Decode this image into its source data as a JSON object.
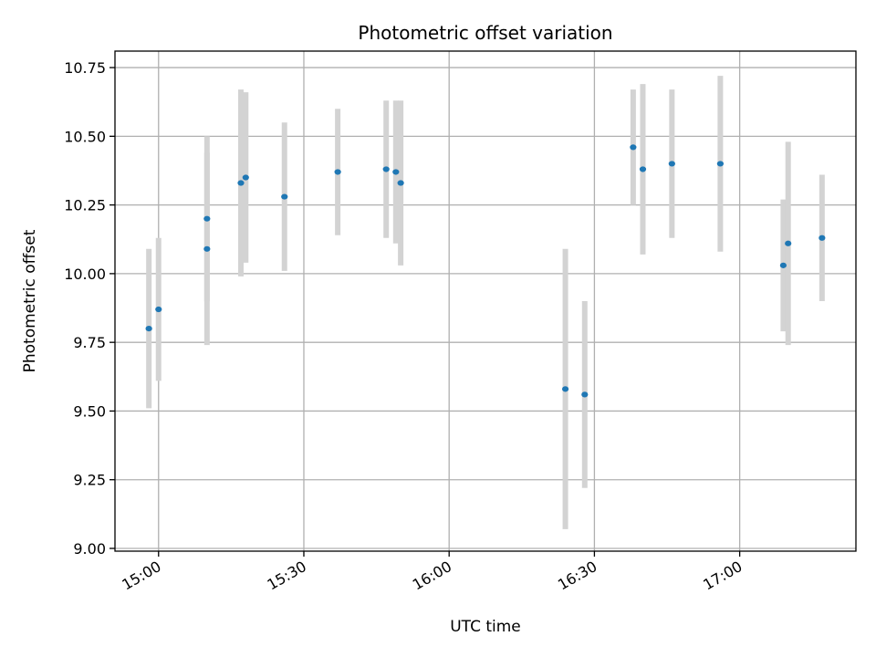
{
  "chart_data": {
    "type": "scatter",
    "title": "Photometric offset variation",
    "xlabel": "UTC time",
    "ylabel": "Photometric offset",
    "x_ticks": [
      "15:00",
      "15:30",
      "16:00",
      "16:30",
      "17:00"
    ],
    "y_ticks": [
      "9.00",
      "9.25",
      "9.50",
      "9.75",
      "10.00",
      "10.25",
      "10.50",
      "10.75"
    ],
    "xlim": [
      "14:51",
      "17:24"
    ],
    "ylim": [
      8.99,
      10.81
    ],
    "grid": true,
    "marker_color": "#1f77b4",
    "errorbar_color": "#d3d3d3",
    "series": [
      {
        "points": [
          {
            "x": "14:58",
            "y": 9.8,
            "err": 0.29
          },
          {
            "x": "15:00",
            "y": 9.87,
            "err": 0.26
          },
          {
            "x": "15:10",
            "y": 10.09,
            "err": 0.35
          },
          {
            "x": "15:10",
            "y": 10.2,
            "err": 0.3
          },
          {
            "x": "15:17",
            "y": 10.33,
            "err": 0.34
          },
          {
            "x": "15:18",
            "y": 10.35,
            "err": 0.31
          },
          {
            "x": "15:26",
            "y": 10.28,
            "err": 0.27
          },
          {
            "x": "15:37",
            "y": 10.37,
            "err": 0.23
          },
          {
            "x": "15:47",
            "y": 10.38,
            "err": 0.25
          },
          {
            "x": "15:49",
            "y": 10.37,
            "err": 0.26
          },
          {
            "x": "15:50",
            "y": 10.33,
            "err": 0.3
          },
          {
            "x": "16:24",
            "y": 9.58,
            "err": 0.51
          },
          {
            "x": "16:28",
            "y": 9.56,
            "err": 0.34
          },
          {
            "x": "16:38",
            "y": 10.46,
            "err": 0.21
          },
          {
            "x": "16:40",
            "y": 10.38,
            "err": 0.31
          },
          {
            "x": "16:46",
            "y": 10.4,
            "err": 0.27
          },
          {
            "x": "16:56",
            "y": 10.4,
            "err": 0.32
          },
          {
            "x": "17:09",
            "y": 10.03,
            "err": 0.24
          },
          {
            "x": "17:10",
            "y": 10.11,
            "err": 0.37
          },
          {
            "x": "17:17",
            "y": 10.13,
            "err": 0.23
          }
        ]
      }
    ]
  }
}
